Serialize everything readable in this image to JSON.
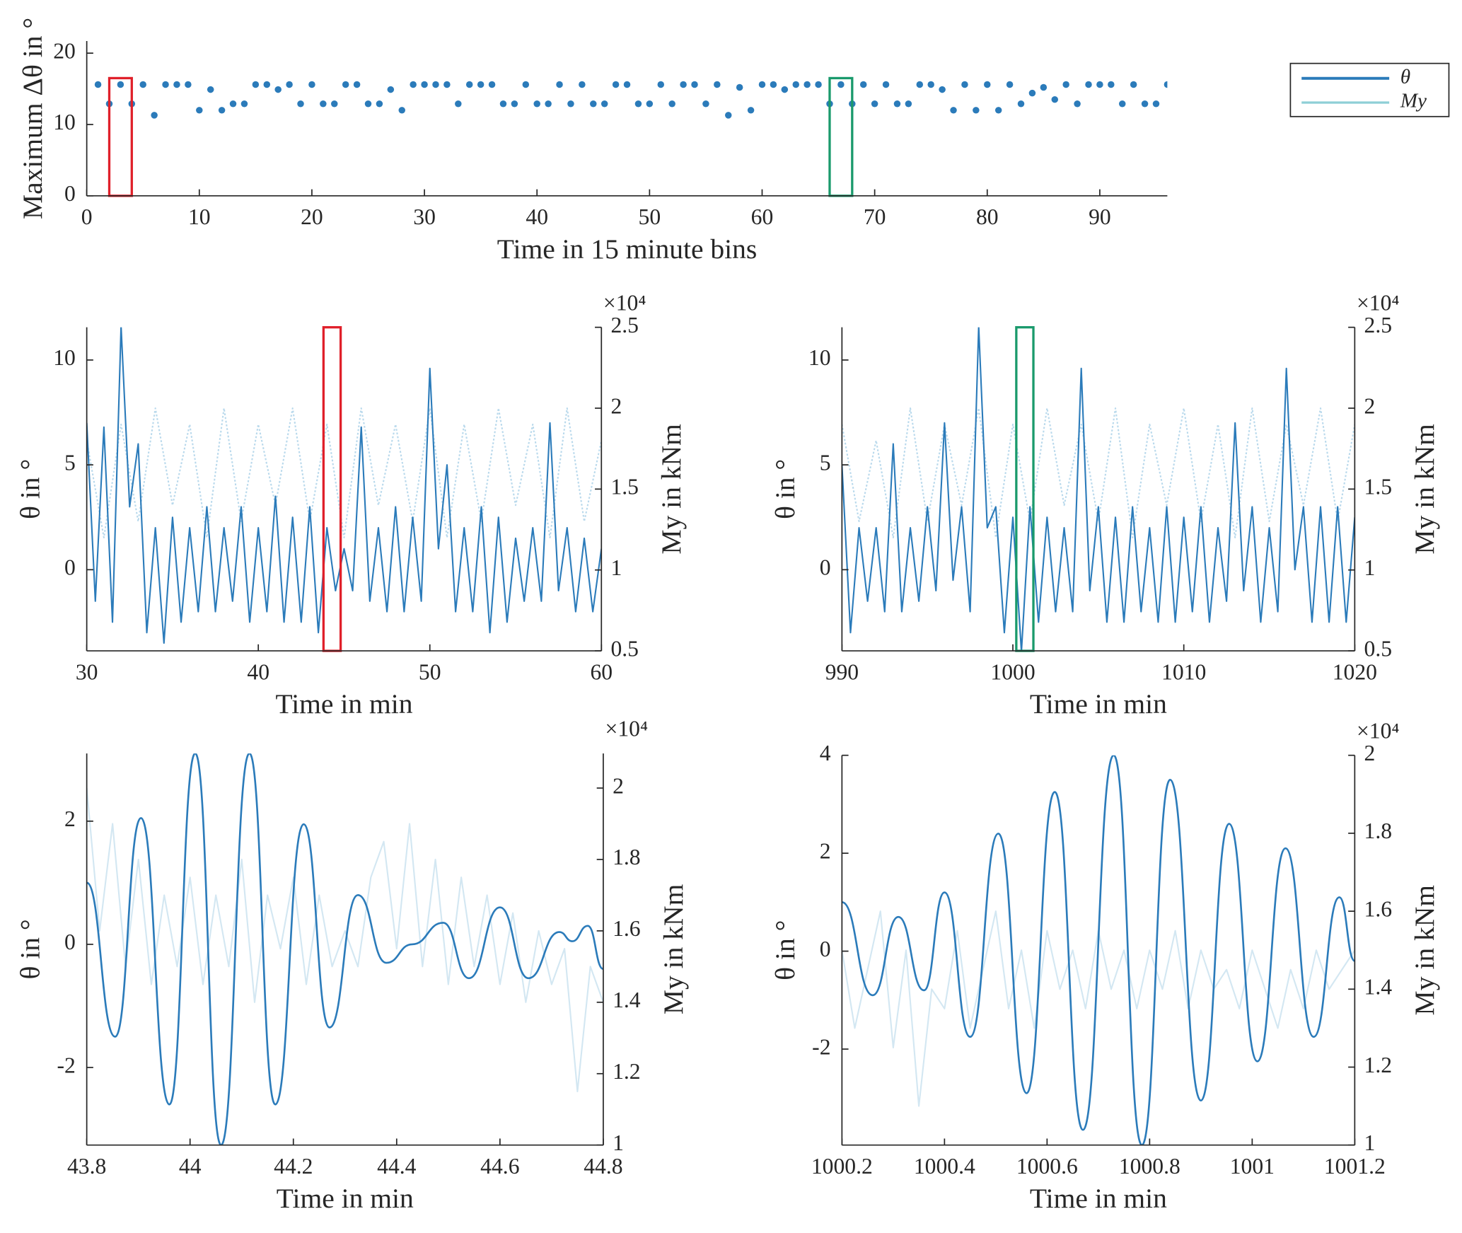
{
  "chart_data": [
    {
      "type": "scatter",
      "xlabel": "Time in 15 minute bins",
      "ylabel": "Maximum Δθ in °",
      "xlim": [
        0,
        96
      ],
      "ylim": [
        0,
        21.7
      ],
      "xticks": [
        0,
        10,
        20,
        30,
        40,
        50,
        60,
        70,
        80,
        90
      ],
      "yticks": [
        0,
        10,
        20
      ],
      "series": [
        {
          "color": "#2b7bba",
          "x": [
            1,
            2,
            3,
            4,
            5,
            6,
            7,
            8,
            9,
            10,
            11,
            12,
            13,
            14,
            15,
            16,
            17,
            18,
            19,
            20,
            21,
            22,
            23,
            24,
            25,
            26,
            27,
            28,
            29,
            30,
            31,
            32,
            33,
            34,
            35,
            36,
            37,
            38,
            39,
            40,
            41,
            42,
            43,
            44,
            45,
            46,
            47,
            48,
            49,
            50,
            51,
            52,
            53,
            54,
            55,
            56,
            57,
            58,
            59,
            60,
            61,
            62,
            63,
            64,
            65,
            66,
            67,
            68,
            69,
            70,
            71,
            72,
            73,
            74,
            75,
            76,
            77,
            78,
            79,
            80,
            81,
            82,
            83,
            84,
            85,
            86,
            87,
            88,
            89,
            90,
            91,
            92,
            93,
            94,
            95,
            96
          ],
          "values": [
            15.6,
            12.9,
            15.6,
            12.9,
            15.6,
            11.3,
            15.6,
            15.6,
            15.6,
            12,
            14.9,
            12,
            12.9,
            12.9,
            15.6,
            15.6,
            14.9,
            15.6,
            12.9,
            15.6,
            12.9,
            12.9,
            15.6,
            15.6,
            12.9,
            12.9,
            14.9,
            12,
            15.6,
            15.6,
            15.6,
            15.6,
            12.9,
            15.6,
            15.6,
            15.6,
            12.9,
            12.9,
            15.6,
            12.9,
            12.9,
            15.6,
            12.9,
            15.6,
            12.9,
            12.9,
            15.6,
            15.6,
            12.9,
            12.9,
            15.6,
            12.9,
            15.6,
            15.6,
            12.9,
            15.6,
            11.3,
            15.2,
            12,
            15.6,
            15.6,
            14.9,
            15.6,
            15.6,
            15.6,
            12.9,
            15.6,
            12.9,
            15.6,
            12.9,
            15.6,
            12.9,
            12.9,
            15.6,
            15.6,
            14.9,
            12,
            15.6,
            12,
            15.6,
            12,
            15.6,
            12.9,
            14.4,
            15.2,
            13.5,
            15.6,
            12.9,
            15.6,
            15.6,
            15.6,
            12.9,
            15.6,
            12.9,
            12.9,
            15.6
          ]
        }
      ],
      "highlights": [
        {
          "x": [
            2,
            4
          ],
          "y": [
            0,
            16.5
          ],
          "color": "#e0202a"
        },
        {
          "x": [
            66,
            68
          ],
          "y": [
            0,
            16.5
          ],
          "color": "#1a9a6c"
        }
      ]
    },
    {
      "type": "line",
      "xlabel": "Time in min",
      "ylabel": "θ in °",
      "y2label": "My in kNm",
      "y2_multiplier": "×10⁴",
      "xlim": [
        30,
        60
      ],
      "ylim": [
        -3.87,
        11.56
      ],
      "y2lim": [
        0.5,
        2.5
      ],
      "xticks": [
        30,
        40,
        50,
        60
      ],
      "yticks": [
        0,
        5,
        10
      ],
      "y2ticks": [
        0.5,
        1,
        1.5,
        2,
        2.5
      ],
      "series": [
        {
          "axis": "y2",
          "color": "#b9d9ec",
          "dashed": true,
          "x": [
            30,
            31,
            32,
            33,
            34,
            35,
            36,
            37,
            38,
            39,
            40,
            41,
            42,
            43,
            44,
            45,
            46,
            47,
            48,
            49,
            50,
            51,
            52,
            53,
            54,
            55,
            56,
            57,
            58,
            59,
            60
          ],
          "values": [
            1.8,
            1.2,
            1.9,
            1.3,
            2.0,
            1.4,
            1.9,
            1.2,
            2.0,
            1.3,
            1.9,
            1.4,
            2.0,
            1.3,
            1.9,
            1.2,
            2.0,
            1.4,
            1.9,
            1.3,
            2.0,
            1.2,
            1.9,
            1.3,
            2.0,
            1.4,
            1.9,
            1.2,
            2.0,
            1.3,
            1.8
          ]
        },
        {
          "color": "#2b7bba",
          "x": [
            30,
            30.5,
            31,
            31.5,
            32,
            32.5,
            33,
            33.5,
            34,
            34.5,
            35,
            35.5,
            36,
            36.5,
            37,
            37.5,
            38,
            38.5,
            39,
            39.5,
            40,
            40.5,
            41,
            41.5,
            42,
            42.5,
            43,
            43.5,
            44,
            44.5,
            45,
            45.5,
            46,
            46.5,
            47,
            47.5,
            48,
            48.5,
            49,
            49.5,
            50,
            50.5,
            51,
            51.5,
            52,
            52.5,
            53,
            53.5,
            54,
            54.5,
            55,
            55.5,
            56,
            56.5,
            57,
            57.5,
            58,
            58.5,
            59,
            59.5,
            60
          ],
          "values": [
            7,
            -1.5,
            6.8,
            -2.5,
            11.6,
            3,
            6,
            -3,
            2,
            -3.5,
            2.5,
            -2.5,
            2,
            -2,
            3,
            -2,
            2,
            -1.5,
            3,
            -2.5,
            2,
            -2,
            3.5,
            -2.5,
            2.5,
            -2.5,
            3,
            -3,
            2,
            -1,
            1,
            -1,
            6.8,
            -1.5,
            2,
            -2,
            3,
            -2,
            2.5,
            -1.5,
            9.6,
            1,
            5,
            -2,
            2,
            -2,
            3,
            -3,
            2.5,
            -2.5,
            1.5,
            -1.5,
            2,
            -1.5,
            7,
            -1,
            2,
            -2,
            1.5,
            -2,
            1
          ]
        }
      ],
      "highlights": [
        {
          "x": [
            43.8,
            44.8
          ],
          "color": "#e0202a"
        }
      ]
    },
    {
      "type": "line",
      "xlabel": "Time in min",
      "ylabel": "θ in °",
      "y2label": "My in kNm",
      "y2_multiplier": "×10⁴",
      "xlim": [
        990,
        1020
      ],
      "ylim": [
        -3.87,
        11.56
      ],
      "y2lim": [
        0.5,
        2.5
      ],
      "xticks": [
        990,
        1000,
        1010,
        1020
      ],
      "yticks": [
        0,
        5,
        10
      ],
      "y2ticks": [
        0.5,
        1,
        1.5,
        2,
        2.5
      ],
      "series": [
        {
          "axis": "y2",
          "color": "#b9d9ec",
          "dashed": true,
          "x": [
            990,
            991,
            992,
            993,
            994,
            995,
            996,
            997,
            998,
            999,
            1000,
            1001,
            1002,
            1003,
            1004,
            1005,
            1006,
            1007,
            1008,
            1009,
            1010,
            1011,
            1012,
            1013,
            1014,
            1015,
            1016,
            1017,
            1018,
            1019,
            1020
          ],
          "values": [
            1.9,
            1.3,
            1.8,
            1.2,
            2.0,
            1.3,
            1.9,
            1.4,
            2.0,
            1.2,
            1.9,
            1.3,
            2.0,
            1.4,
            1.9,
            1.3,
            2.0,
            1.2,
            1.9,
            1.4,
            2.0,
            1.3,
            1.9,
            1.2,
            2.0,
            1.3,
            1.9,
            1.4,
            2.0,
            1.3,
            1.9
          ]
        },
        {
          "color": "#2b7bba",
          "x": [
            990,
            990.5,
            991,
            991.5,
            992,
            992.5,
            993,
            993.5,
            994,
            994.5,
            995,
            995.5,
            996,
            996.5,
            997,
            997.5,
            998,
            998.5,
            999,
            999.5,
            1000,
            1000.5,
            1001,
            1001.5,
            1002,
            1002.5,
            1003,
            1003.5,
            1004,
            1004.5,
            1005,
            1005.5,
            1006,
            1006.5,
            1007,
            1007.5,
            1008,
            1008.5,
            1009,
            1009.5,
            1010,
            1010.5,
            1011,
            1011.5,
            1012,
            1012.5,
            1013,
            1013.5,
            1014,
            1014.5,
            1015,
            1015.5,
            1016,
            1016.5,
            1017,
            1017.5,
            1018,
            1018.5,
            1019,
            1019.5,
            1020
          ],
          "values": [
            5,
            -3,
            2,
            -1.5,
            2,
            -2,
            6,
            -2,
            2,
            -1.5,
            3,
            -1,
            7,
            -0.5,
            3,
            -2,
            11.6,
            2,
            3,
            -3,
            2.5,
            -3.9,
            3,
            -2.5,
            2.5,
            -2,
            2,
            -2,
            9.6,
            -1,
            3,
            -2.5,
            2.5,
            -2.5,
            3,
            -2,
            2,
            -2.5,
            3,
            -2.5,
            2.5,
            -2,
            3,
            -2.5,
            2,
            -1.5,
            7,
            -1,
            3,
            -2.5,
            2,
            -2,
            9.6,
            0,
            3,
            -2.5,
            3,
            -2.5,
            3,
            -2.5,
            2.5
          ]
        }
      ],
      "highlights": [
        {
          "x": [
            1000.2,
            1001.2
          ],
          "color": "#1a9a6c"
        }
      ]
    },
    {
      "type": "line",
      "xlabel": "Time in min",
      "ylabel": "θ in °",
      "y2label": "My in kNm",
      "y2_multiplier": "×10⁴",
      "xlim": [
        43.8,
        44.8
      ],
      "ylim": [
        -3.26,
        3.1
      ],
      "y2lim": [
        1,
        2.097
      ],
      "xticks": [
        43.8,
        44,
        44.2,
        44.4,
        44.6,
        44.8
      ],
      "yticks": [
        -2,
        0,
        2
      ],
      "y2ticks": [
        1,
        1.2,
        1.4,
        1.6,
        1.8,
        2
      ],
      "series": [
        {
          "axis": "y2",
          "color": "#d3e7f2",
          "x": [
            43.8,
            43.825,
            43.85,
            43.875,
            43.9,
            43.925,
            43.95,
            43.975,
            44,
            44.025,
            44.05,
            44.075,
            44.1,
            44.125,
            44.15,
            44.175,
            44.2,
            44.225,
            44.25,
            44.275,
            44.3,
            44.325,
            44.35,
            44.375,
            44.4,
            44.425,
            44.45,
            44.475,
            44.5,
            44.525,
            44.55,
            44.575,
            44.6,
            44.625,
            44.65,
            44.675,
            44.7,
            44.725,
            44.75,
            44.775,
            44.8
          ],
          "values": [
            2.0,
            1.6,
            1.9,
            1.5,
            1.8,
            1.45,
            1.7,
            1.5,
            1.75,
            1.45,
            1.7,
            1.5,
            1.8,
            1.4,
            1.7,
            1.55,
            1.75,
            1.45,
            1.7,
            1.5,
            1.6,
            1.5,
            1.75,
            1.85,
            1.55,
            1.9,
            1.5,
            1.8,
            1.45,
            1.75,
            1.5,
            1.7,
            1.45,
            1.65,
            1.4,
            1.6,
            1.45,
            1.55,
            1.15,
            1.5,
            1.4
          ]
        },
        {
          "color": "#2b7bba",
          "smooth": true,
          "x": [
            43.8,
            43.855,
            43.905,
            43.96,
            44.01,
            44.06,
            44.115,
            44.165,
            44.22,
            44.27,
            44.325,
            44.38,
            44.43,
            44.49,
            44.54,
            44.6,
            44.655,
            44.715,
            44.74,
            44.77,
            44.8
          ],
          "values": [
            1.0,
            -1.5,
            2.05,
            -2.6,
            3.1,
            -3.26,
            3.1,
            -2.6,
            1.95,
            -1.35,
            0.8,
            -0.3,
            0,
            0.35,
            -0.55,
            0.6,
            -0.55,
            0.2,
            0.05,
            0.3,
            -0.4
          ]
        }
      ]
    },
    {
      "type": "line",
      "xlabel": "Time in min",
      "ylabel": "θ in °",
      "y2label": "My in kNm",
      "y2_multiplier": "×10⁴",
      "xlim": [
        1000.2,
        1001.2
      ],
      "ylim": [
        -3.96,
        4
      ],
      "y2lim": [
        1,
        2
      ],
      "xticks": [
        1000.2,
        1000.4,
        1000.6,
        1000.8,
        1001,
        1001.2
      ],
      "yticks": [
        -2,
        0,
        2,
        4
      ],
      "y2ticks": [
        1,
        1.2,
        1.4,
        1.6,
        1.8,
        2
      ],
      "series": [
        {
          "axis": "y2",
          "color": "#d3e7f2",
          "x": [
            1000.2,
            1000.225,
            1000.25,
            1000.275,
            1000.3,
            1000.325,
            1000.35,
            1000.375,
            1000.4,
            1000.425,
            1000.45,
            1000.475,
            1000.5,
            1000.525,
            1000.55,
            1000.575,
            1000.6,
            1000.625,
            1000.65,
            1000.675,
            1000.7,
            1000.725,
            1000.75,
            1000.775,
            1000.8,
            1000.825,
            1000.85,
            1000.875,
            1000.9,
            1000.925,
            1000.95,
            1000.975,
            1001,
            1001.025,
            1001.05,
            1001.075,
            1001.1,
            1001.125,
            1001.15,
            1001.175,
            1001.2
          ],
          "values": [
            1.5,
            1.3,
            1.45,
            1.6,
            1.25,
            1.5,
            1.1,
            1.4,
            1.35,
            1.55,
            1.3,
            1.45,
            1.6,
            1.35,
            1.5,
            1.3,
            1.55,
            1.4,
            1.5,
            1.35,
            1.55,
            1.4,
            1.5,
            1.35,
            1.5,
            1.4,
            1.55,
            1.35,
            1.5,
            1.4,
            1.45,
            1.35,
            1.5,
            1.4,
            1.3,
            1.45,
            1.35,
            1.5,
            1.4,
            1.45,
            1.5
          ]
        },
        {
          "color": "#2b7bba",
          "smooth": true,
          "x": [
            1000.2,
            1000.26,
            1000.31,
            1000.36,
            1000.4,
            1000.45,
            1000.505,
            1000.56,
            1000.615,
            1000.67,
            1000.73,
            1000.785,
            1000.84,
            1000.9,
            1000.955,
            1001.01,
            1001.065,
            1001.12,
            1001.17,
            1001.2
          ],
          "values": [
            1.0,
            -0.9,
            0.7,
            -0.8,
            1.2,
            -1.75,
            2.4,
            -2.9,
            3.25,
            -3.65,
            4,
            -3.96,
            3.5,
            -3.05,
            2.6,
            -2.25,
            2.1,
            -1.75,
            1.1,
            -0.2
          ]
        }
      ]
    }
  ],
  "legend": [
    {
      "name": "θ",
      "color": "#2b7bba"
    },
    {
      "name": "My",
      "color": "#8ecfd6"
    }
  ]
}
